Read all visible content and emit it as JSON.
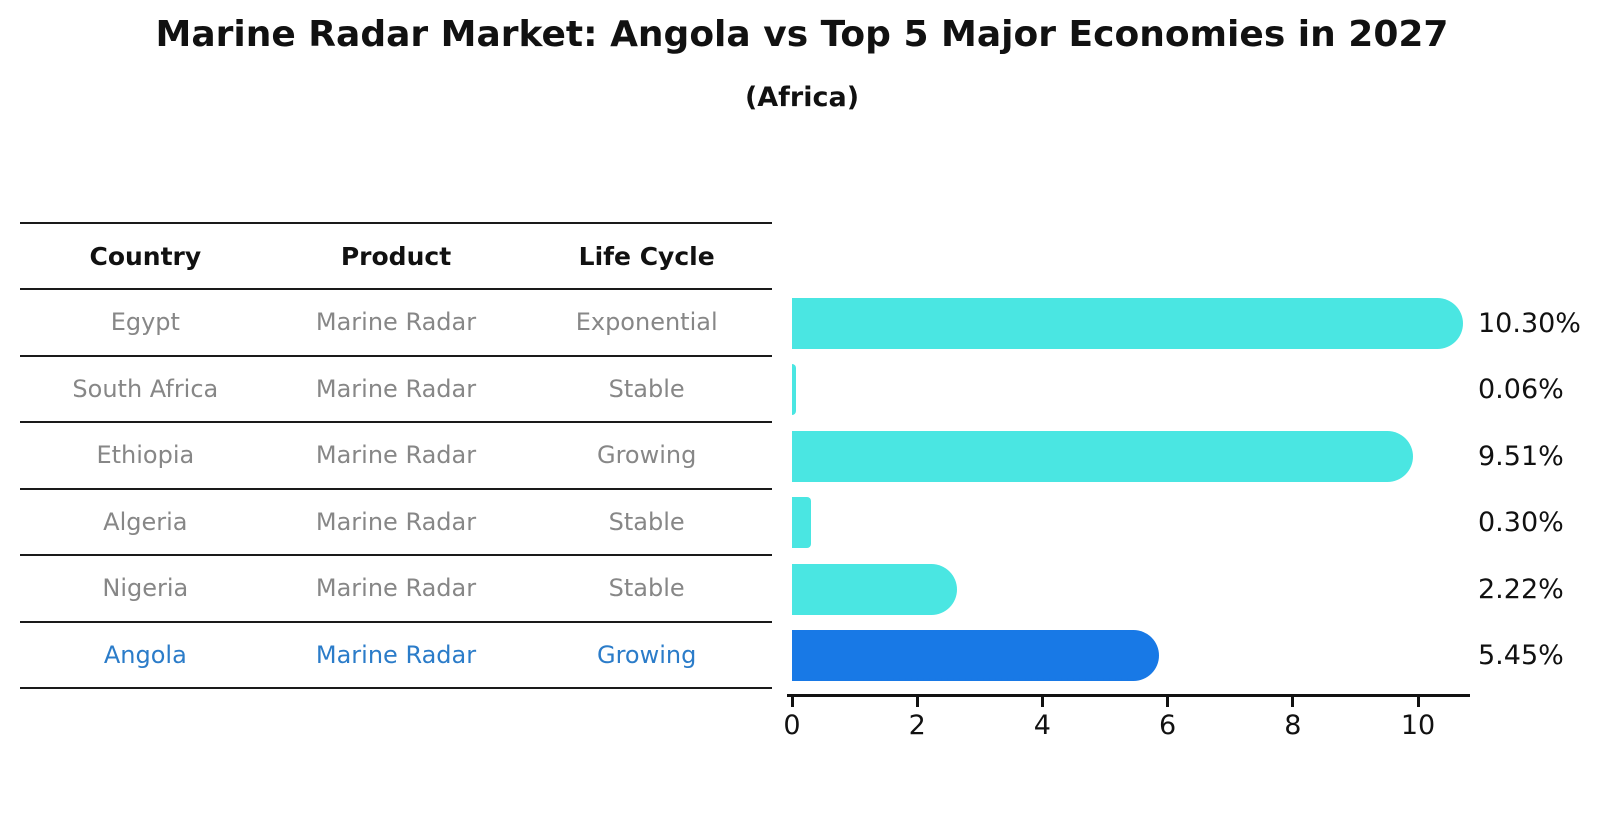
{
  "title": "Marine Radar Market: Angola vs Top 5 Major Economies in 2027",
  "subtitle": "(Africa)",
  "table": {
    "headers": [
      "Country",
      "Product",
      "Life Cycle"
    ],
    "rows": [
      {
        "country": "Egypt",
        "product": "Marine Radar",
        "life_cycle": "Exponential",
        "highlight": false
      },
      {
        "country": "South Africa",
        "product": "Marine Radar",
        "life_cycle": "Stable",
        "highlight": false
      },
      {
        "country": "Ethiopia",
        "product": "Marine Radar",
        "life_cycle": "Growing",
        "highlight": false
      },
      {
        "country": "Algeria",
        "product": "Marine Radar",
        "life_cycle": "Stable",
        "highlight": false
      },
      {
        "country": "Nigeria",
        "product": "Marine Radar",
        "life_cycle": "Stable",
        "highlight": false
      },
      {
        "country": "Angola",
        "product": "Marine Radar",
        "life_cycle": "Growing",
        "highlight": true
      }
    ]
  },
  "chart_data": {
    "type": "bar",
    "orientation": "horizontal",
    "title": "Marine Radar Market: Angola vs Top 5 Major Economies in 2027",
    "subtitle": "(Africa)",
    "categories": [
      "Egypt",
      "South Africa",
      "Ethiopia",
      "Algeria",
      "Nigeria",
      "Angola"
    ],
    "values": [
      10.3,
      0.06,
      9.51,
      0.3,
      2.22,
      5.45
    ],
    "labels": [
      "10.30%",
      "0.06%",
      "9.51%",
      "0.30%",
      "2.22%",
      "5.45%"
    ],
    "x_ticks": [
      0,
      2,
      4,
      6,
      8,
      10
    ],
    "xlim": [
      0,
      10.85
    ],
    "unit": "percent",
    "grid": false,
    "legend": false,
    "bar_color": "#4AE6E2",
    "highlight_color": "#1879E6",
    "highlight_edge_color": "#1879E6",
    "highlight_index": 5
  },
  "colors": {
    "bar": "#4AE6E2",
    "highlight": "#1879E6",
    "highlight_text": "#2B7CC9",
    "table_text": "#878787",
    "header_text": "#111111",
    "line": "#1A1A1A"
  }
}
